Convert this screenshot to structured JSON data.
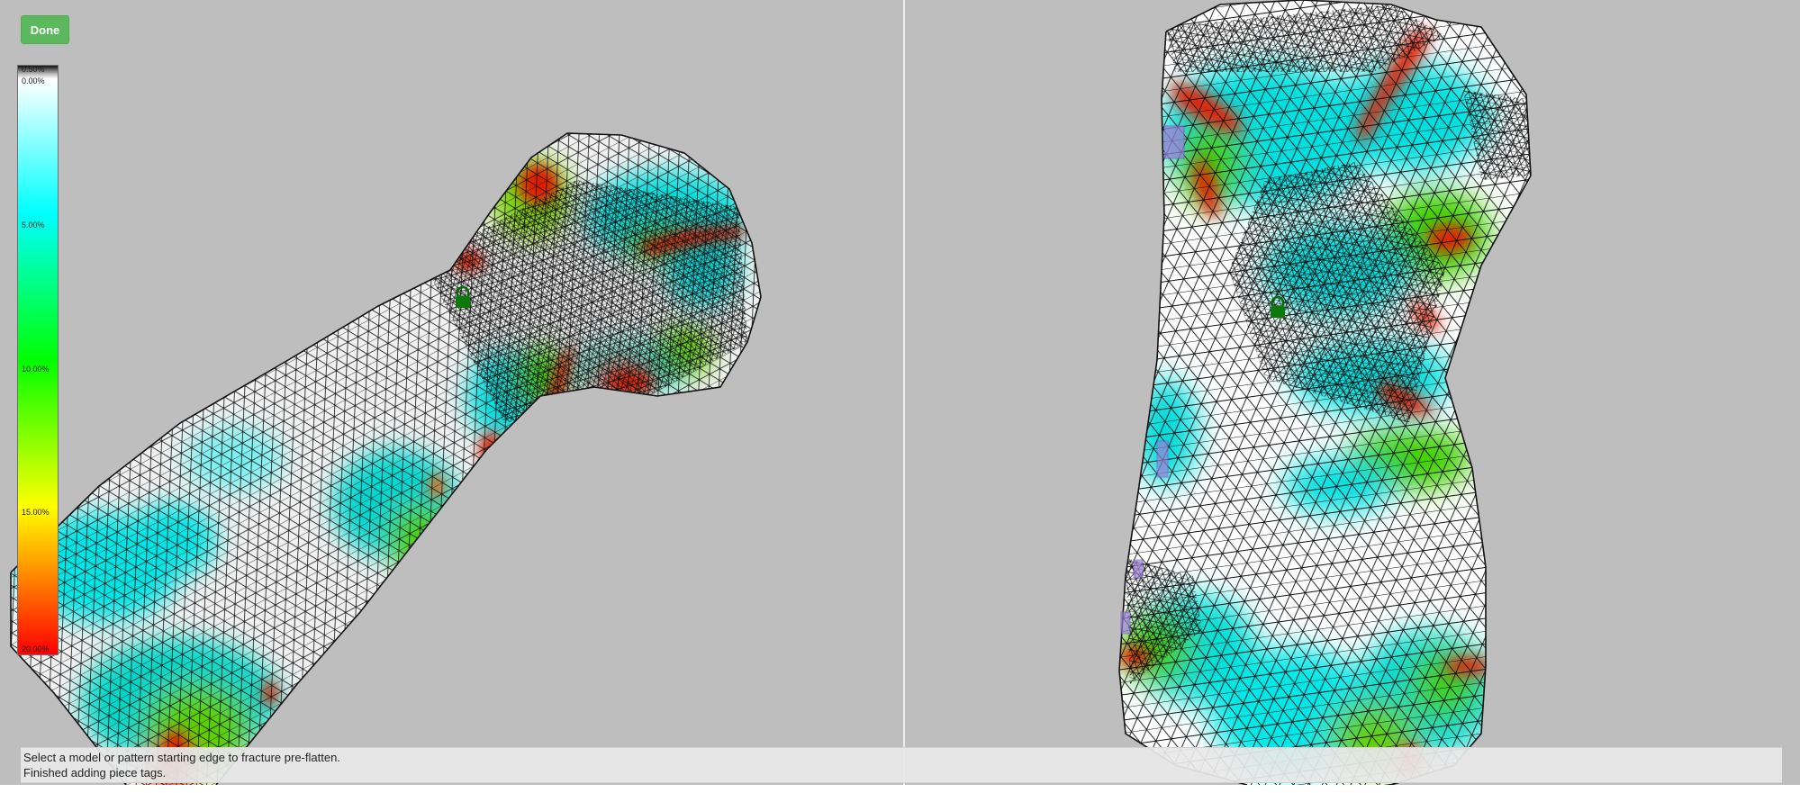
{
  "toolbar": {
    "done_label": "Done"
  },
  "legend": {
    "labels": [
      "0.50%",
      "0.00%",
      "5.00%",
      "10.00%",
      "15.00%",
      "20.00%"
    ],
    "colors": {
      "low": "#ffffff",
      "cyan": "#00ffff",
      "mid": "#00ff00",
      "high_mid": "#ffff00",
      "high": "#ff0000"
    }
  },
  "status": {
    "line1": "Select a model or pattern starting edge to fracture pre-flatten.",
    "line2": "Finished adding piece tags."
  },
  "icons": {
    "lock": "lock-icon"
  },
  "colors": {
    "background": "#bebebe",
    "done_button": "#5cb85c",
    "mesh_line": "#111111"
  }
}
